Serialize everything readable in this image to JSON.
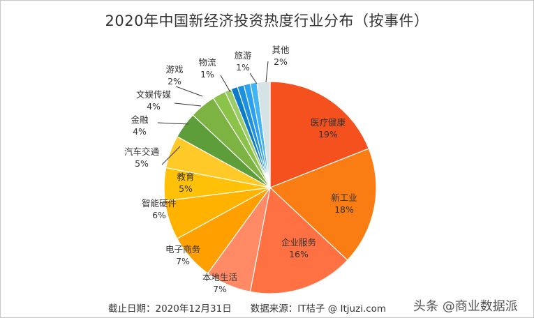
{
  "title": "2020年中国新经济投资热度行业分布（按事件）",
  "footer": "截止日期：2020年12月31日　　数据来源：IT桔子 @ Itjuzi.com",
  "watermark": "头条 @商业数据派",
  "chart_data": {
    "type": "pie",
    "title": "2020年中国新经济投资热度行业分布（按事件）",
    "start_angle": "12 o'clock, clockwise",
    "slices": [
      {
        "label": "医疗健康",
        "value": 19,
        "display": "19%",
        "color": "#F4511E"
      },
      {
        "label": "新工业",
        "value": 18,
        "display": "18%",
        "color": "#F97D12"
      },
      {
        "label": "企业服务",
        "value": 16,
        "display": "16%",
        "color": "#FF7043"
      },
      {
        "label": "本地生活",
        "value": 7,
        "display": "7%",
        "color": "#FF8A65"
      },
      {
        "label": "电子商务",
        "value": 7,
        "display": "7%",
        "color": "#FFA000"
      },
      {
        "label": "智能硬件",
        "value": 6,
        "display": "6%",
        "color": "#FFB300"
      },
      {
        "label": "教育",
        "value": 5,
        "display": "5%",
        "color": "#FFC107"
      },
      {
        "label": "汽车交通",
        "value": 5,
        "display": "5%",
        "color": "#FFCA28"
      },
      {
        "label": "金融",
        "value": 4,
        "display": "4%",
        "color": "#5E9E3A"
      },
      {
        "label": "文娱传媒",
        "value": 4,
        "display": "4%",
        "color": "#7CB342"
      },
      {
        "label": "游戏",
        "value": 2,
        "display": "2%",
        "color": "#8BC34A"
      },
      {
        "label": "物流",
        "value": 1,
        "display": "1%",
        "color": "#9CCC65"
      },
      {
        "label": "",
        "value": 1,
        "display": "",
        "color": "#0B7DC8"
      },
      {
        "label": "",
        "value": 1,
        "display": "",
        "color": "#1E90E0"
      },
      {
        "label": "",
        "value": 1,
        "display": "",
        "color": "#2AA0F0"
      },
      {
        "label": "旅游",
        "value": 1,
        "display": "1%",
        "color": "#42B4F5"
      },
      {
        "label": "其他",
        "value": 2,
        "display": "2%",
        "color": "#D5E3E6"
      }
    ],
    "footnote": "截止日期：2020年12月31日　数据来源：IT桔子 @ Itjuzi.com"
  }
}
